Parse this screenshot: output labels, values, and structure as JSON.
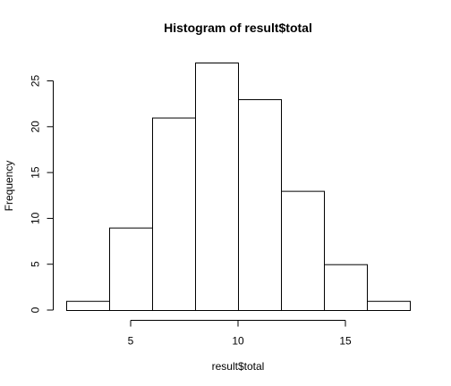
{
  "chart_data": {
    "type": "bar",
    "title": "Histogram of result$total",
    "xlabel": "result$total",
    "ylabel": "Frequency",
    "bin_edges": [
      2,
      4,
      6,
      8,
      10,
      12,
      14,
      16,
      18
    ],
    "values": [
      1,
      9,
      21,
      27,
      23,
      13,
      5,
      1
    ],
    "xlim": [
      2,
      18
    ],
    "ylim": [
      0,
      27
    ],
    "x_ticks": [
      5,
      10,
      15
    ],
    "y_ticks": [
      0,
      5,
      10,
      15,
      20,
      25
    ],
    "x_tick_labels": [
      "5",
      "10",
      "15"
    ],
    "y_tick_labels": [
      "0",
      "5",
      "10",
      "15",
      "20",
      "25"
    ],
    "grid": false,
    "legend": "none",
    "bar_fill": "#ffffff",
    "bar_stroke": "#000000"
  }
}
